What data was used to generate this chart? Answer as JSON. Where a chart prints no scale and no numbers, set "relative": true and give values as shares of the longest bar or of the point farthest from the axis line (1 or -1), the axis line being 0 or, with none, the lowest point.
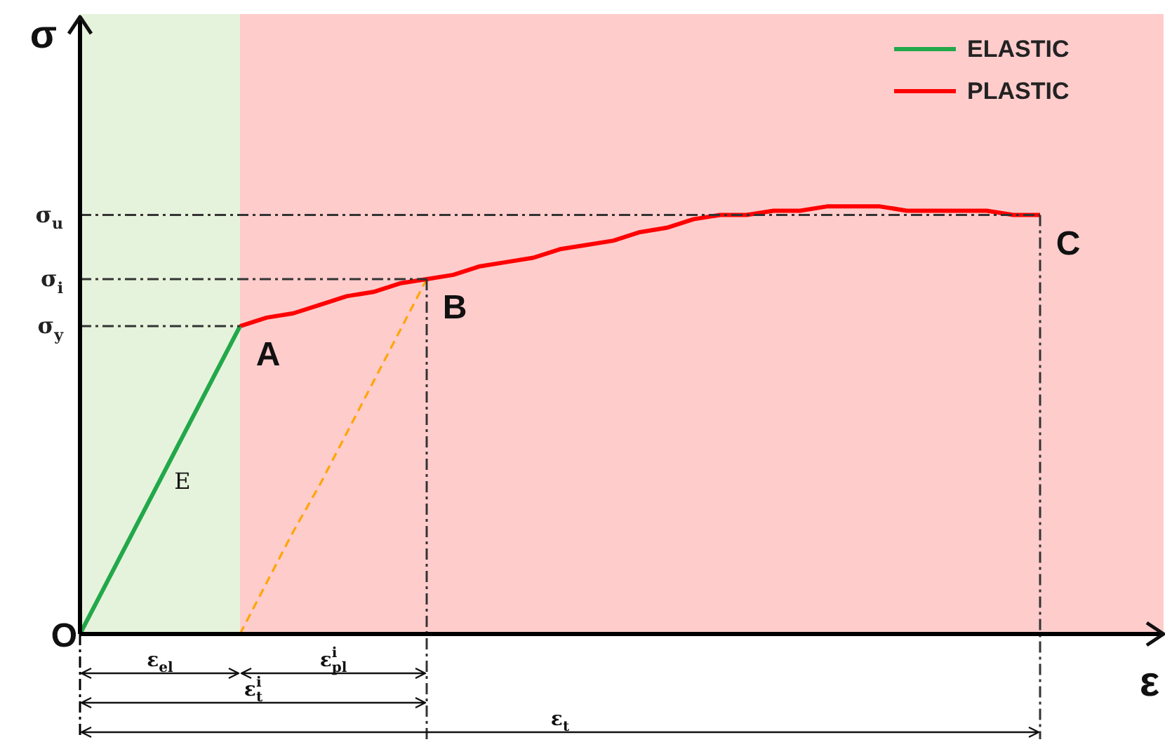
{
  "chart_data": {
    "type": "line",
    "relative": true,
    "xlabel": "ε",
    "ylabel": "σ",
    "legend": "top right",
    "categories": [
      null,
      null,
      null,
      null,
      null,
      null,
      null,
      null,
      null,
      null,
      null,
      null,
      null,
      null,
      null,
      null,
      null,
      null,
      null,
      null,
      null,
      null,
      null,
      null,
      null,
      null,
      null,
      null,
      null,
      null,
      null,
      null,
      null,
      null,
      null,
      null,
      null,
      null,
      null,
      null,
      null
    ],
    "series": [
      {
        "name": "ELASTIC",
        "color": "#22a84a",
        "values": [
          0,
          0.12,
          0.24,
          0.36,
          0.48,
          0.6,
          0.72,
          null,
          null,
          null,
          null,
          null,
          null,
          null,
          null,
          null,
          null,
          null,
          null,
          null,
          null,
          null,
          null,
          null,
          null,
          null,
          null,
          null,
          null,
          null,
          null,
          null,
          null,
          null,
          null,
          null,
          null,
          null,
          null,
          null,
          null
        ]
      },
      {
        "name": "PLASTIC",
        "color": "#ff0000",
        "values": [
          null,
          null,
          null,
          null,
          null,
          null,
          0.72,
          0.74,
          0.75,
          0.77,
          0.79,
          0.8,
          0.82,
          0.83,
          0.84,
          0.86,
          0.87,
          0.88,
          0.9,
          0.91,
          0.92,
          0.94,
          0.95,
          0.97,
          0.98,
          0.98,
          0.99,
          0.99,
          1.0,
          1.0,
          1.0,
          0.99,
          0.99,
          0.99,
          0.99,
          0.98,
          0.98,
          null,
          null,
          null,
          null
        ]
      },
      {
        "color": "#ffa500",
        "line_style": "dashed",
        "values": [
          null,
          null,
          null,
          null,
          null,
          null,
          0,
          0.12,
          0.24,
          0.35,
          0.47,
          0.59,
          0.71,
          0.83,
          null,
          null,
          null,
          null,
          null,
          null,
          null,
          null,
          null,
          null,
          null,
          null,
          null,
          null,
          null,
          null,
          null,
          null,
          null,
          null,
          null,
          null,
          null,
          null,
          null,
          null,
          null
        ]
      }
    ],
    "ref_lines": [
      {
        "axis": "y",
        "value": 0.72,
        "label": "σ$_{y}$",
        "color": "#333333",
        "line_style": "dashed"
      },
      {
        "axis": "y",
        "value": 0.83,
        "label": "σ$_{i}$",
        "color": "#333333",
        "line_style": "dashed"
      },
      {
        "axis": "y",
        "value": 0.98,
        "label": "σ$_{u}$",
        "color": "#333333",
        "line_style": "dashed"
      }
    ],
    "annotations": [
      {
        "text": "A",
        "y": 0.72
      },
      {
        "text": "B",
        "y": 0.83
      },
      "O",
      "C",
      "E",
      "ε$_{el}$",
      "ε$^{i}$$_{pl}$",
      "ε$^{i}$$_{t}$",
      "ε$_{t}$"
    ]
  }
}
